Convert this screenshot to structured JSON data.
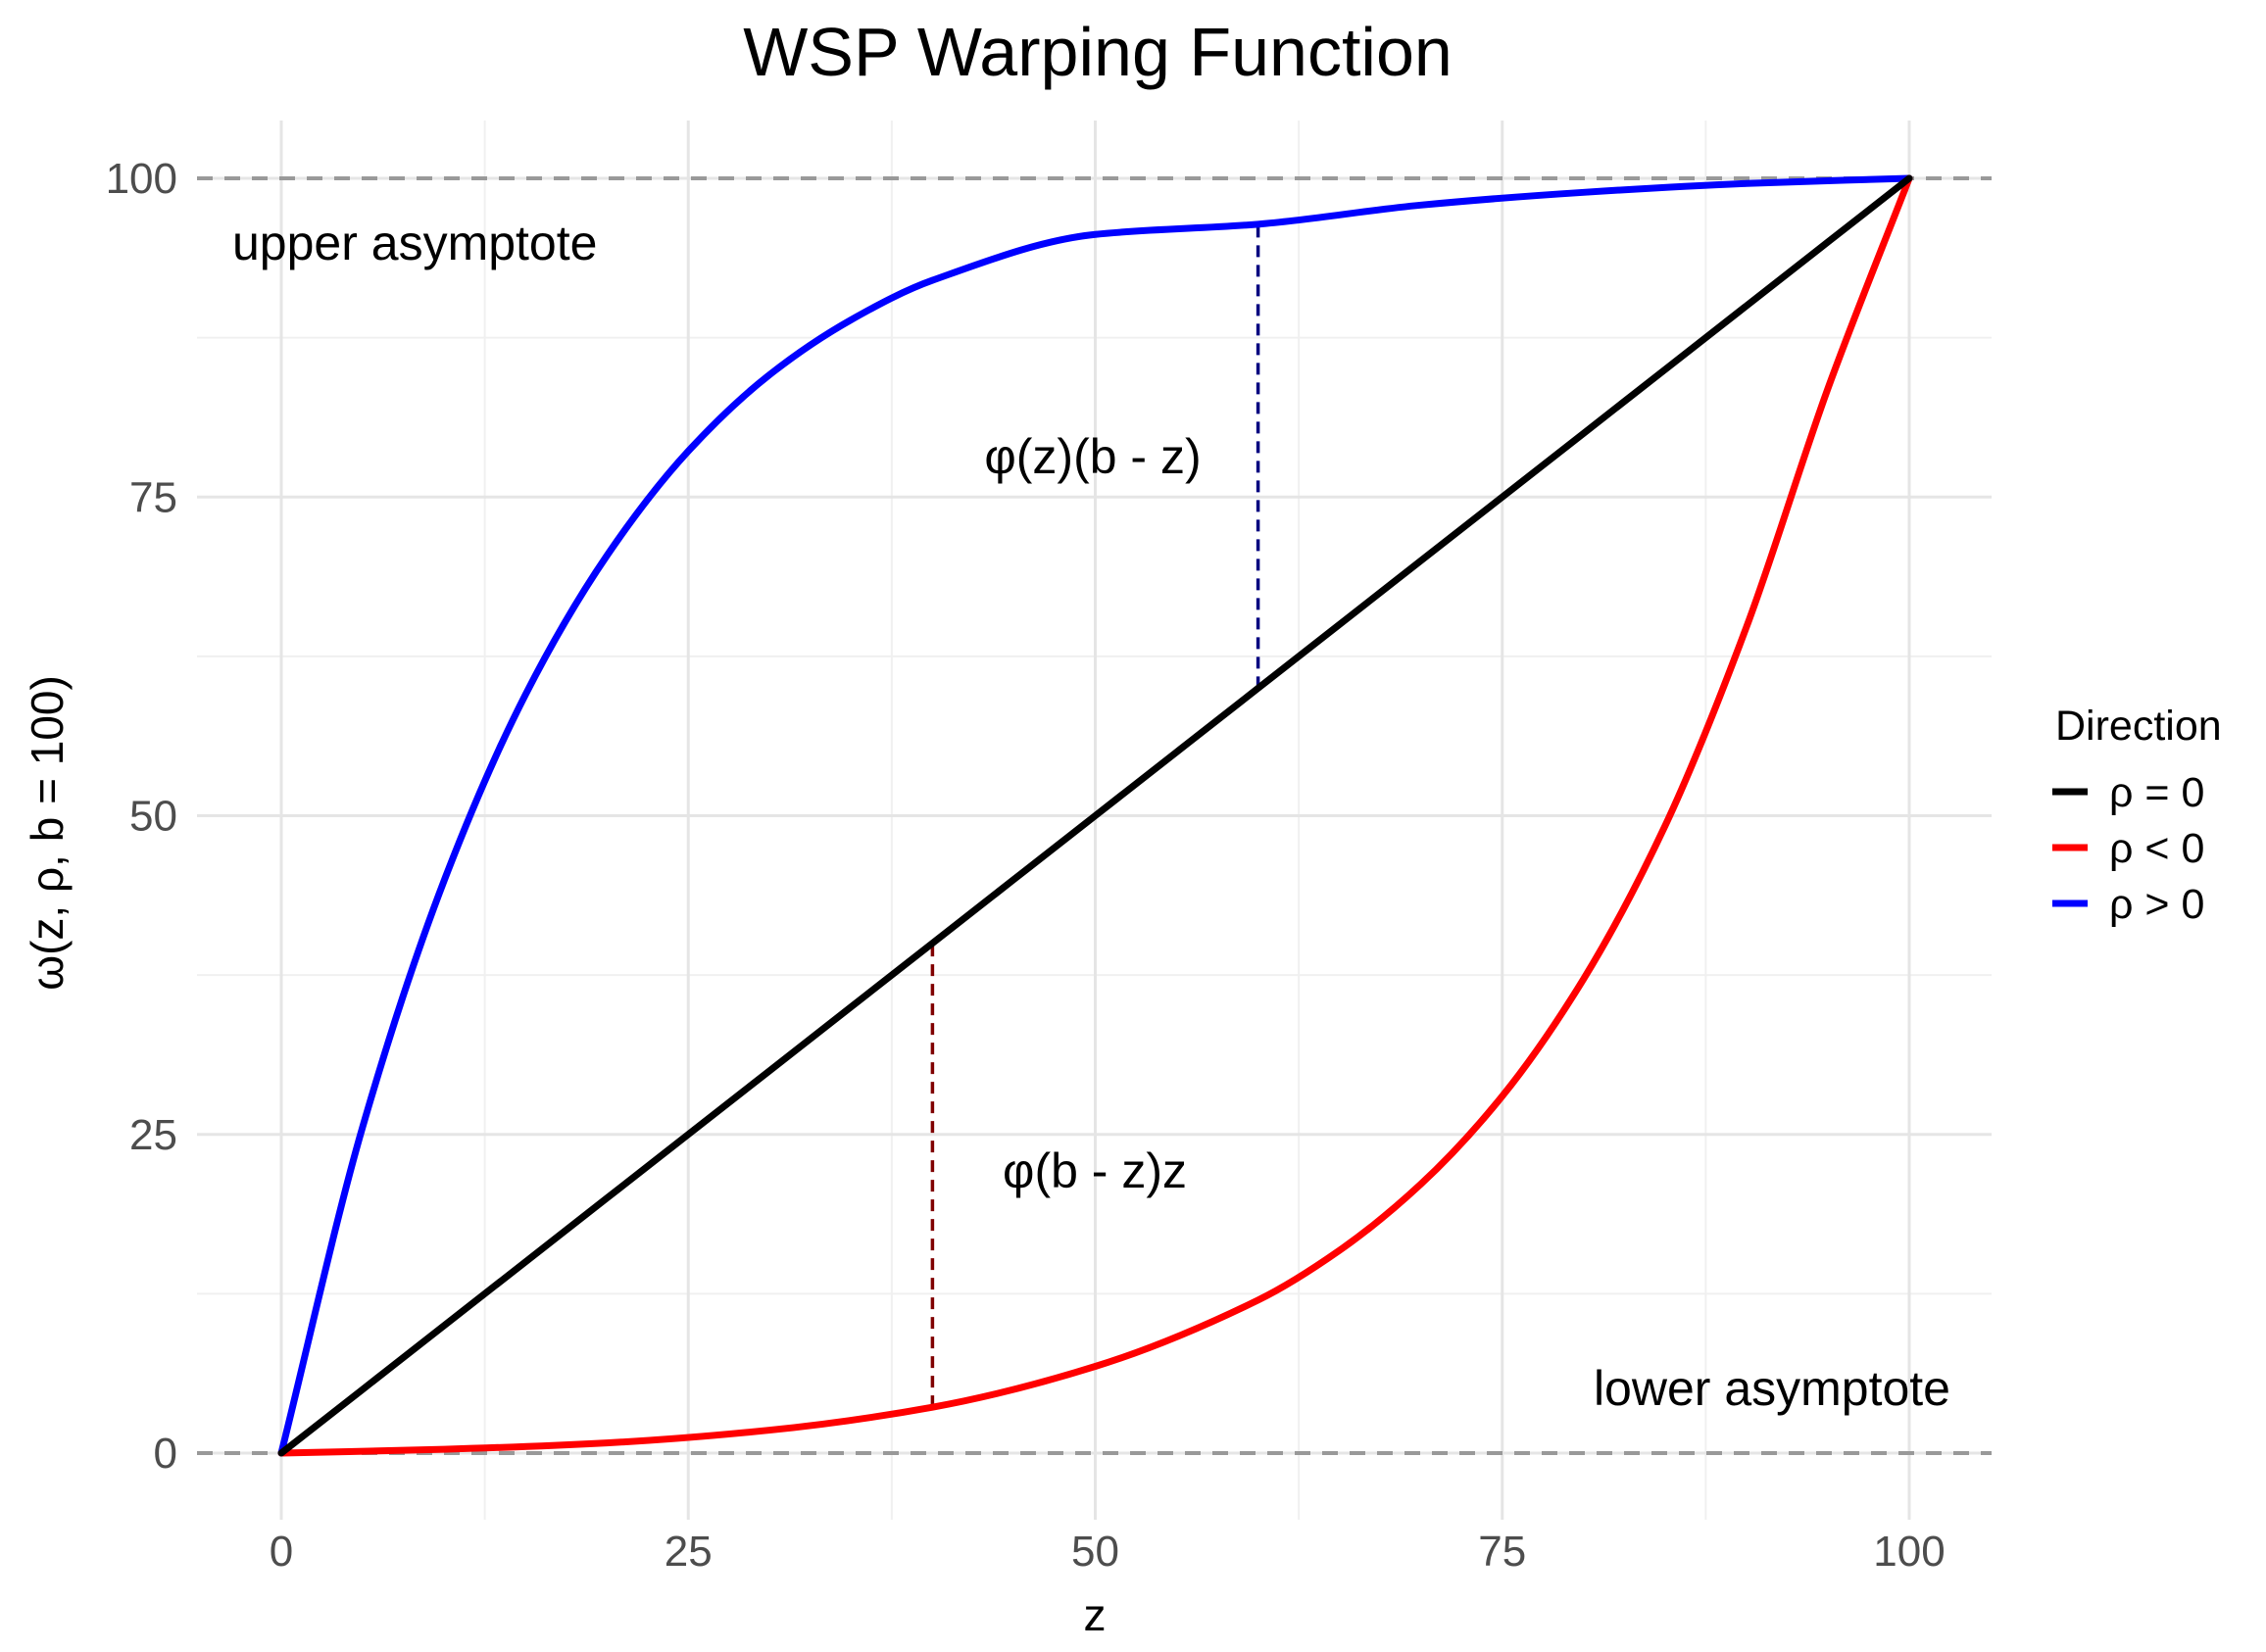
{
  "chart_data": {
    "type": "line",
    "title": "WSP Warping Function",
    "xlabel": "z",
    "ylabel": "ω(z, ρ, b = 100)",
    "xlim": [
      -10,
      105
    ],
    "ylim": [
      -5,
      105
    ],
    "x_ticks": [
      0,
      25,
      50,
      75,
      100
    ],
    "x_tick_labels": [
      "0",
      "25",
      "50",
      "75",
      "100"
    ],
    "y_ticks": [
      0,
      25,
      50,
      75,
      100
    ],
    "y_tick_labels": [
      "0",
      "25",
      "50",
      "75",
      "100"
    ],
    "grid": true,
    "legend": {
      "title": "Direction",
      "placement": "right"
    },
    "series": [
      {
        "name": "ρ = 0",
        "color": "#000000",
        "x": [
          0,
          10,
          20,
          30,
          40,
          50,
          60,
          70,
          80,
          90,
          100
        ],
        "y": [
          0,
          10,
          20,
          30,
          40,
          50,
          60,
          70,
          80,
          90,
          100
        ]
      },
      {
        "name": "ρ < 0",
        "color": "#ff0000",
        "x": [
          0,
          10,
          20,
          30,
          40,
          50,
          60,
          65,
          70,
          75,
          80,
          85,
          90,
          95,
          100
        ],
        "y": [
          0,
          0.3,
          0.8,
          1.8,
          3.6,
          6.8,
          12,
          15.9,
          21.1,
          28,
          37.2,
          49.2,
          64.8,
          83.5,
          100
        ]
      },
      {
        "name": "ρ > 0",
        "color": "#0000ff",
        "x": [
          0,
          5,
          10,
          15,
          20,
          25,
          30,
          35,
          40,
          50,
          60,
          70,
          80,
          90,
          100
        ],
        "y": [
          0,
          25.6,
          44.9,
          59.5,
          70.4,
          78.6,
          84.6,
          88.9,
          92.0,
          95.6,
          96.4,
          97.9,
          98.9,
          99.6,
          100
        ]
      }
    ],
    "reference_lines": [
      {
        "type": "horizontal",
        "y": 0,
        "label": "lower asymptote",
        "color": "#999999",
        "style": "dashed"
      },
      {
        "type": "horizontal",
        "y": 100,
        "label": "upper asymptote",
        "color": "#999999",
        "style": "dashed"
      }
    ],
    "segments": [
      {
        "x": 60,
        "y_from": 60,
        "y_to": 96.4,
        "color": "#000080",
        "style": "dashed",
        "label": "φ(z)(b - z)"
      },
      {
        "x": 40,
        "y_from": 3.6,
        "y_to": 40,
        "color": "#800000",
        "style": "dashed",
        "label": "φ(b - z)z"
      }
    ]
  }
}
